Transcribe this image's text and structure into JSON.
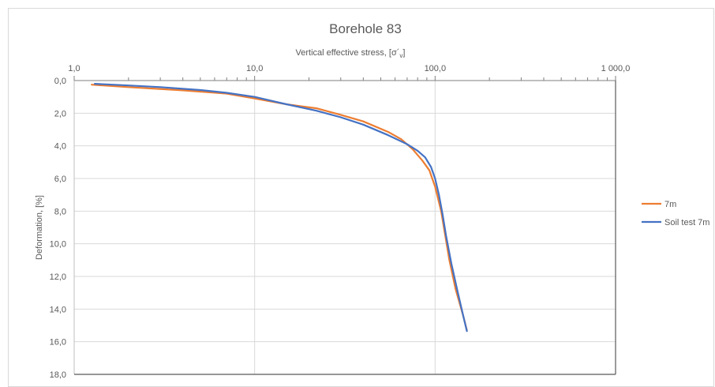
{
  "chart_data": {
    "type": "line",
    "title": "Borehole 83",
    "xlabel": "Vertical effective stress, [σ´",
    "xlabel_sub": "v",
    "xlabel_end": "]",
    "ylabel": "Deformation, [%]",
    "x_scale": "log",
    "xlim": [
      1,
      1000
    ],
    "ylim": [
      0,
      18
    ],
    "y_inverted": true,
    "x_axis_position": "top",
    "x_ticks": [
      1,
      10,
      100,
      1000
    ],
    "x_tick_labels": [
      "1,0",
      "10,0",
      "100,0",
      "1 000,0"
    ],
    "y_ticks": [
      0,
      2,
      4,
      6,
      8,
      10,
      12,
      14,
      16,
      18
    ],
    "y_tick_labels": [
      "0,0",
      "2,0",
      "4,0",
      "6,0",
      "8,0",
      "10,0",
      "12,0",
      "14,0",
      "16,0",
      "18,0"
    ],
    "grid": true,
    "legend_position": "right",
    "series": [
      {
        "name": "7m",
        "color": "#ed7d31",
        "x": [
          1.25,
          2.0,
          4.0,
          7.0,
          10.0,
          15.0,
          22.0,
          30.0,
          40.0,
          55.0,
          65.0,
          75.0,
          85.0,
          93.0,
          100.0,
          108.0,
          113.0,
          120.0,
          130.0,
          143.0,
          150.0
        ],
        "y": [
          0.25,
          0.4,
          0.6,
          0.8,
          1.1,
          1.45,
          1.7,
          2.1,
          2.5,
          3.15,
          3.6,
          4.2,
          4.9,
          5.5,
          6.5,
          8.0,
          9.3,
          11.0,
          12.8,
          14.4,
          15.3
        ]
      },
      {
        "name": "Soil test 7m",
        "color": "#4472c4",
        "x": [
          1.3,
          2.0,
          3.0,
          5.0,
          7.0,
          10.0,
          15.0,
          22.0,
          30.0,
          40.0,
          55.0,
          70.0,
          80.0,
          88.0,
          95.0,
          100.0,
          105.0,
          110.0,
          115.0,
          123.0,
          133.0,
          143.0,
          150.0
        ],
        "y": [
          0.2,
          0.3,
          0.4,
          0.58,
          0.75,
          1.0,
          1.45,
          1.85,
          2.25,
          2.7,
          3.35,
          3.9,
          4.3,
          4.7,
          5.3,
          6.0,
          7.0,
          8.2,
          9.5,
          11.2,
          12.9,
          14.4,
          15.35
        ]
      }
    ]
  }
}
